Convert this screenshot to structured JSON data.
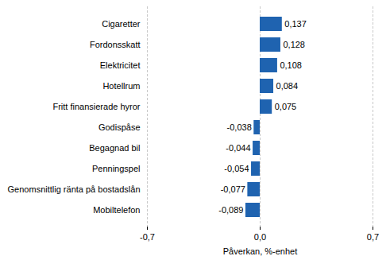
{
  "chart_data": {
    "type": "bar",
    "orientation": "horizontal",
    "categories": [
      "Cigaretter",
      "Fordonsskatt",
      "Elektricitet",
      "Hotellrum",
      "Fritt finansierade hyror",
      "Godispåse",
      "Begagnad bil",
      "Penningspel",
      "Genomsnittlig ränta på bostadslån",
      "Mobiltelefon"
    ],
    "values": [
      0.137,
      0.128,
      0.108,
      0.084,
      0.075,
      -0.038,
      -0.044,
      -0.054,
      -0.077,
      -0.089
    ],
    "value_labels": [
      "0,137",
      "0,128",
      "0,108",
      "0,084",
      "0,075",
      "-0,038",
      "-0,044",
      "-0,054",
      "-0,077",
      "-0,089"
    ],
    "data_labels": true,
    "color": "#1f63b0",
    "xlabel": "Påverkan, %-enhet",
    "xlim": [
      -0.7,
      0.7
    ],
    "xticks": [
      {
        "value": -0.7,
        "label": "-0,7"
      },
      {
        "value": 0,
        "label": "0,0"
      },
      {
        "value": 0.7,
        "label": "0,7"
      }
    ],
    "grid": true
  }
}
